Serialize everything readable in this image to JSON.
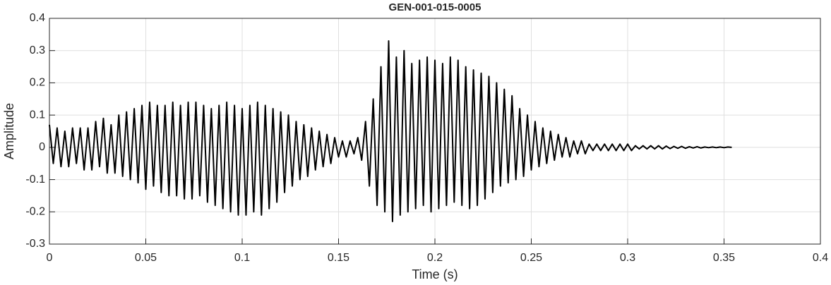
{
  "chart_data": {
    "type": "line",
    "title": "GEN-001-015-0005",
    "xlabel": "Time (s)",
    "ylabel": "Amplitude",
    "x": [
      0,
      0.002,
      0.004,
      0.006,
      0.008,
      0.01,
      0.012,
      0.014,
      0.016,
      0.018,
      0.02,
      0.022,
      0.024,
      0.026,
      0.028,
      0.03,
      0.032,
      0.034,
      0.036,
      0.038,
      0.04,
      0.042,
      0.044,
      0.046,
      0.048,
      0.05,
      0.052,
      0.054,
      0.056,
      0.058,
      0.06,
      0.062,
      0.064,
      0.066,
      0.068,
      0.07,
      0.072,
      0.074,
      0.076,
      0.078,
      0.08,
      0.082,
      0.084,
      0.086,
      0.088,
      0.09,
      0.092,
      0.094,
      0.096,
      0.098,
      0.1,
      0.102,
      0.104,
      0.106,
      0.108,
      0.11,
      0.112,
      0.114,
      0.116,
      0.118,
      0.12,
      0.122,
      0.124,
      0.126,
      0.128,
      0.13,
      0.132,
      0.134,
      0.136,
      0.138,
      0.14,
      0.142,
      0.144,
      0.146,
      0.148,
      0.15,
      0.152,
      0.154,
      0.156,
      0.158,
      0.16,
      0.162,
      0.164,
      0.166,
      0.168,
      0.17,
      0.172,
      0.174,
      0.176,
      0.178,
      0.18,
      0.182,
      0.184,
      0.186,
      0.188,
      0.19,
      0.192,
      0.194,
      0.196,
      0.198,
      0.2,
      0.202,
      0.204,
      0.206,
      0.208,
      0.21,
      0.212,
      0.214,
      0.216,
      0.218,
      0.22,
      0.222,
      0.224,
      0.226,
      0.228,
      0.23,
      0.232,
      0.234,
      0.236,
      0.238,
      0.24,
      0.242,
      0.244,
      0.246,
      0.248,
      0.25,
      0.252,
      0.254,
      0.256,
      0.258,
      0.26,
      0.262,
      0.264,
      0.266,
      0.268,
      0.27,
      0.272,
      0.274,
      0.276,
      0.278,
      0.28,
      0.282,
      0.284,
      0.286,
      0.288,
      0.29,
      0.292,
      0.294,
      0.296,
      0.298,
      0.3,
      0.302,
      0.304,
      0.306,
      0.308,
      0.31,
      0.312,
      0.314,
      0.316,
      0.318,
      0.32,
      0.322,
      0.324,
      0.326,
      0.328,
      0.33,
      0.332,
      0.334,
      0.336,
      0.338,
      0.34,
      0.342,
      0.344,
      0.346,
      0.348,
      0.35,
      0.352,
      0.354
    ],
    "series": [
      {
        "color": "#000000",
        "values": [
          0.07,
          -0.05,
          0.06,
          -0.06,
          0.05,
          -0.06,
          0.06,
          -0.05,
          0.06,
          -0.07,
          0.06,
          -0.07,
          0.08,
          -0.06,
          0.09,
          -0.08,
          0.07,
          -0.08,
          0.1,
          -0.09,
          0.11,
          -0.1,
          0.12,
          -0.11,
          0.13,
          -0.13,
          0.14,
          -0.12,
          0.13,
          -0.14,
          0.13,
          -0.15,
          0.14,
          -0.15,
          0.13,
          -0.16,
          0.14,
          -0.16,
          0.14,
          -0.15,
          0.13,
          -0.17,
          0.12,
          -0.18,
          0.13,
          -0.19,
          0.14,
          -0.2,
          0.13,
          -0.21,
          0.12,
          -0.21,
          0.13,
          -0.2,
          0.14,
          -0.21,
          0.13,
          -0.19,
          0.12,
          -0.17,
          0.11,
          -0.14,
          0.1,
          -0.12,
          0.08,
          -0.1,
          0.07,
          -0.09,
          0.06,
          -0.07,
          0.05,
          -0.06,
          0.04,
          -0.05,
          0.03,
          -0.03,
          0.02,
          -0.03,
          0.02,
          -0.02,
          0.03,
          -0.04,
          0.08,
          -0.12,
          0.15,
          -0.18,
          0.25,
          -0.2,
          0.33,
          -0.23,
          0.28,
          -0.21,
          0.3,
          -0.2,
          0.26,
          -0.19,
          0.27,
          -0.18,
          0.28,
          -0.2,
          0.27,
          -0.19,
          0.26,
          -0.18,
          0.28,
          -0.17,
          0.27,
          -0.18,
          0.25,
          -0.19,
          0.24,
          -0.18,
          0.23,
          -0.16,
          0.22,
          -0.14,
          0.2,
          -0.12,
          0.18,
          -0.11,
          0.16,
          -0.1,
          0.12,
          -0.09,
          0.1,
          -0.07,
          0.08,
          -0.06,
          0.06,
          -0.05,
          0.05,
          -0.04,
          0.04,
          -0.03,
          0.03,
          -0.03,
          0.02,
          -0.02,
          0.02,
          -0.02,
          0.01,
          -0.01,
          0.01,
          -0.01,
          0.01,
          -0.01,
          0.01,
          -0.01,
          0.01,
          -0.01,
          0.01,
          -0.01,
          0.005,
          -0.005,
          0.005,
          -0.005,
          0.005,
          -0.005,
          0.005,
          -0.005,
          0.004,
          -0.004,
          0.003,
          -0.003,
          0.003,
          -0.003,
          0.002,
          -0.002,
          0.002,
          -0.002,
          0.001,
          -0.001,
          0.001,
          -0.001,
          0.001,
          -0.001,
          0.001,
          0
        ]
      }
    ],
    "xlim": [
      0,
      0.4
    ],
    "xticks": [
      0,
      0.05,
      0.1,
      0.15,
      0.2,
      0.25,
      0.3,
      0.35,
      0.4
    ],
    "ylim": [
      -0.3,
      0.4
    ],
    "yticks": [
      -0.3,
      -0.2,
      -0.1,
      0,
      0.1,
      0.2,
      0.3,
      0.4
    ],
    "grid": true
  }
}
